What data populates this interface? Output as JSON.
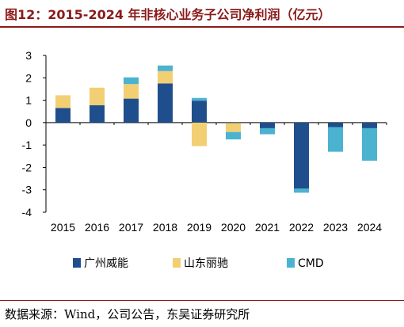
{
  "title": "图12：2015-2024 年非核心业务子公司净利润（亿元）",
  "source": "数据来源：Wind，公司公告，东吴证券研究所",
  "chart_data": {
    "type": "bar",
    "stacked": true,
    "categories": [
      "2015",
      "2016",
      "2017",
      "2018",
      "2019",
      "2020",
      "2021",
      "2022",
      "2023",
      "2024"
    ],
    "series": [
      {
        "name": "广州威能",
        "color": "#1f4e8c",
        "values": [
          0.65,
          0.78,
          1.07,
          1.75,
          0.98,
          -0.02,
          -0.25,
          -2.95,
          -0.2,
          -0.25
        ]
      },
      {
        "name": "山东丽驰",
        "color": "#f2cf72",
        "values": [
          0.57,
          0.78,
          0.65,
          0.55,
          -1.05,
          -0.4,
          0.0,
          0.0,
          0.0,
          0.0
        ]
      },
      {
        "name": "CMD",
        "color": "#4bb3cf",
        "values": [
          0.0,
          0.0,
          0.3,
          0.25,
          0.12,
          -0.33,
          -0.27,
          -0.18,
          -1.1,
          -1.45
        ]
      }
    ],
    "ylim": [
      -4,
      3
    ],
    "yticks": [
      "3",
      "2",
      "1",
      "0",
      "-1",
      "-2",
      "-3",
      "-4"
    ],
    "ytick_values": [
      3,
      2,
      1,
      0,
      -1,
      -2,
      -3,
      -4
    ],
    "legend_position": "bottom",
    "grid": false
  }
}
